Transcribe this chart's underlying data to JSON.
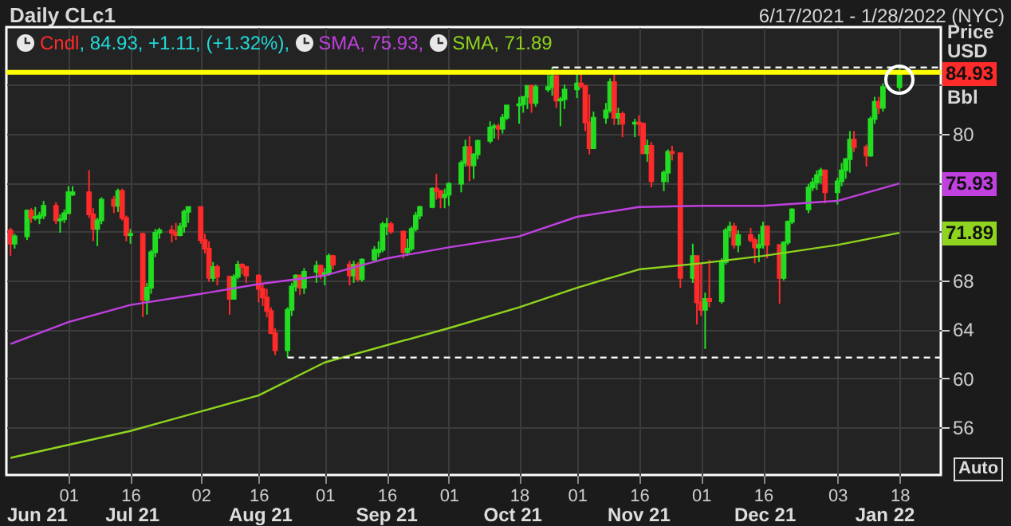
{
  "chart_data": {
    "type": "candlestick",
    "title": "Daily CLc1",
    "subtitle": "6/17/2021 - 1/28/2022 (NYC)",
    "ylabel": "Price USD Bbl",
    "series": [
      {
        "name": "Cndl",
        "x": [
          "2021-06-17",
          "2021-06-18",
          "2021-06-21",
          "2021-06-22",
          "2021-06-23",
          "2021-06-24",
          "2021-06-25",
          "2021-06-28",
          "2021-06-29",
          "2021-06-30",
          "2021-07-01",
          "2021-07-02",
          "2021-07-06",
          "2021-07-07",
          "2021-07-08",
          "2021-07-09",
          "2021-07-12",
          "2021-07-13",
          "2021-07-14",
          "2021-07-15",
          "2021-07-16",
          "2021-07-19",
          "2021-07-20",
          "2021-07-21",
          "2021-07-22",
          "2021-07-23",
          "2021-07-26",
          "2021-07-27",
          "2021-07-28",
          "2021-07-29",
          "2021-07-30",
          "2021-08-02",
          "2021-08-03",
          "2021-08-04",
          "2021-08-05",
          "2021-08-06",
          "2021-08-09",
          "2021-08-10",
          "2021-08-11",
          "2021-08-12",
          "2021-08-13",
          "2021-08-16",
          "2021-08-17",
          "2021-08-18",
          "2021-08-19",
          "2021-08-20",
          "2021-08-23",
          "2021-08-24",
          "2021-08-25",
          "2021-08-26",
          "2021-08-27",
          "2021-08-30",
          "2021-08-31",
          "2021-09-01",
          "2021-09-02",
          "2021-09-03",
          "2021-09-07",
          "2021-09-08",
          "2021-09-09",
          "2021-09-10",
          "2021-09-13",
          "2021-09-14",
          "2021-09-15",
          "2021-09-16",
          "2021-09-17",
          "2021-09-20",
          "2021-09-21",
          "2021-09-22",
          "2021-09-23",
          "2021-09-24",
          "2021-09-27",
          "2021-09-28",
          "2021-09-29",
          "2021-09-30",
          "2021-10-01",
          "2021-10-04",
          "2021-10-05",
          "2021-10-06",
          "2021-10-07",
          "2021-10-08",
          "2021-10-11",
          "2021-10-12",
          "2021-10-13",
          "2021-10-14",
          "2021-10-15",
          "2021-10-18",
          "2021-10-19",
          "2021-10-20",
          "2021-10-21",
          "2021-10-22",
          "2021-10-25",
          "2021-10-26",
          "2021-10-27",
          "2021-10-28",
          "2021-10-29",
          "2021-11-01",
          "2021-11-02",
          "2021-11-03",
          "2021-11-04",
          "2021-11-05",
          "2021-11-08",
          "2021-11-09",
          "2021-11-10",
          "2021-11-11",
          "2021-11-12",
          "2021-11-15",
          "2021-11-16",
          "2021-11-17",
          "2021-11-18",
          "2021-11-19",
          "2021-11-22",
          "2021-11-23",
          "2021-11-24",
          "2021-11-26",
          "2021-11-29",
          "2021-11-30",
          "2021-12-01",
          "2021-12-02",
          "2021-12-03",
          "2021-12-06",
          "2021-12-07",
          "2021-12-08",
          "2021-12-09",
          "2021-12-10",
          "2021-12-13",
          "2021-12-14",
          "2021-12-15",
          "2021-12-16",
          "2021-12-17",
          "2021-12-20",
          "2021-12-21",
          "2021-12-22",
          "2021-12-23",
          "2021-12-27",
          "2021-12-28",
          "2021-12-29",
          "2021-12-30",
          "2021-12-31",
          "2022-01-03",
          "2022-01-04",
          "2022-01-05",
          "2022-01-06",
          "2022-01-07",
          "2022-01-10",
          "2022-01-11",
          "2022-01-12",
          "2022-01-13",
          "2022-01-14",
          "2022-01-18"
        ],
        "ohlc": [
          [
            72.1,
            72.3,
            70.0,
            71.0
          ],
          [
            71.0,
            71.8,
            70.6,
            71.6
          ],
          [
            71.6,
            73.8,
            71.3,
            73.7
          ],
          [
            73.7,
            73.9,
            72.7,
            73.1
          ],
          [
            73.1,
            74.0,
            72.9,
            73.2
          ],
          [
            73.1,
            73.6,
            72.6,
            73.3
          ],
          [
            73.3,
            74.5,
            73.0,
            74.1
          ],
          [
            74.1,
            74.4,
            72.6,
            72.9
          ],
          [
            72.9,
            73.4,
            71.9,
            73.0
          ],
          [
            73.0,
            73.8,
            72.7,
            73.5
          ],
          [
            73.5,
            75.7,
            73.4,
            75.2
          ],
          [
            75.0,
            75.7,
            74.9,
            75.2
          ],
          [
            75.2,
            77.0,
            73.1,
            73.4
          ],
          [
            73.4,
            73.9,
            71.2,
            72.2
          ],
          [
            72.2,
            73.1,
            70.8,
            72.9
          ],
          [
            72.9,
            74.8,
            72.6,
            74.6
          ],
          [
            74.6,
            74.9,
            73.5,
            74.1
          ],
          [
            74.1,
            75.5,
            73.6,
            75.3
          ],
          [
            75.3,
            75.5,
            72.9,
            73.1
          ],
          [
            73.1,
            73.3,
            71.2,
            71.7
          ],
          [
            71.7,
            72.2,
            71.0,
            71.8
          ],
          [
            71.8,
            71.9,
            65.0,
            66.4
          ],
          [
            66.4,
            67.8,
            65.2,
            67.4
          ],
          [
            67.4,
            70.5,
            66.9,
            70.3
          ],
          [
            70.3,
            72.2,
            69.9,
            71.9
          ],
          [
            71.9,
            72.3,
            71.4,
            72.1
          ],
          [
            72.1,
            72.5,
            71.1,
            71.9
          ],
          [
            71.9,
            72.7,
            71.3,
            71.7
          ],
          [
            71.7,
            72.7,
            71.6,
            72.4
          ],
          [
            72.4,
            73.8,
            71.9,
            73.6
          ],
          [
            73.6,
            74.0,
            72.7,
            74.0
          ],
          [
            74.0,
            74.0,
            71.0,
            71.3
          ],
          [
            71.3,
            71.8,
            70.2,
            70.6
          ],
          [
            70.6,
            71.2,
            67.9,
            68.2
          ],
          [
            68.2,
            69.5,
            67.9,
            69.1
          ],
          [
            69.1,
            69.3,
            67.6,
            68.3
          ],
          [
            68.3,
            68.4,
            65.2,
            66.5
          ],
          [
            66.5,
            68.5,
            66.5,
            68.3
          ],
          [
            68.3,
            69.6,
            68.1,
            69.3
          ],
          [
            69.3,
            69.4,
            68.5,
            69.1
          ],
          [
            69.1,
            69.2,
            67.8,
            68.4
          ],
          [
            68.4,
            68.5,
            66.2,
            67.3
          ],
          [
            67.3,
            67.8,
            65.9,
            66.6
          ],
          [
            66.6,
            67.3,
            65.0,
            65.5
          ],
          [
            65.5,
            65.8,
            63.6,
            63.7
          ],
          [
            63.7,
            64.1,
            61.9,
            62.3
          ],
          [
            62.3,
            65.8,
            61.7,
            65.6
          ],
          [
            65.6,
            67.8,
            65.1,
            67.5
          ],
          [
            67.5,
            68.5,
            67.1,
            68.4
          ],
          [
            68.4,
            68.5,
            66.8,
            67.4
          ],
          [
            67.4,
            69.0,
            66.9,
            68.7
          ],
          [
            68.7,
            69.6,
            67.8,
            69.2
          ],
          [
            69.2,
            69.3,
            68.1,
            68.5
          ],
          [
            68.5,
            69.0,
            67.6,
            68.6
          ],
          [
            68.6,
            70.2,
            68.4,
            70.0
          ],
          [
            70.0,
            70.1,
            68.9,
            69.3
          ],
          [
            69.3,
            69.6,
            67.6,
            68.4
          ],
          [
            68.4,
            69.6,
            67.8,
            69.3
          ],
          [
            69.3,
            69.5,
            67.9,
            68.1
          ],
          [
            68.1,
            69.8,
            67.9,
            69.7
          ],
          [
            69.7,
            70.8,
            69.5,
            70.5
          ],
          [
            70.3,
            71.2,
            69.9,
            70.5
          ],
          [
            70.5,
            72.8,
            70.3,
            72.6
          ],
          [
            72.4,
            73.1,
            71.7,
            72.6
          ],
          [
            72.6,
            72.8,
            71.8,
            72.0
          ],
          [
            72.0,
            72.0,
            69.8,
            70.3
          ],
          [
            70.3,
            71.4,
            70.0,
            70.6
          ],
          [
            70.6,
            72.4,
            70.4,
            72.2
          ],
          [
            72.2,
            73.6,
            72.0,
            73.3
          ],
          [
            73.3,
            74.1,
            73.0,
            74.0
          ],
          [
            74.0,
            75.6,
            73.9,
            75.5
          ],
          [
            75.5,
            76.7,
            74.6,
            75.3
          ],
          [
            75.3,
            75.4,
            73.9,
            74.8
          ],
          [
            74.8,
            75.5,
            73.9,
            75.0
          ],
          [
            75.0,
            76.0,
            74.1,
            75.9
          ],
          [
            75.9,
            77.8,
            75.2,
            77.6
          ],
          [
            77.6,
            79.5,
            77.3,
            78.9
          ],
          [
            78.9,
            79.8,
            76.1,
            77.4
          ],
          [
            77.4,
            78.4,
            76.3,
            78.3
          ],
          [
            78.3,
            79.5,
            77.9,
            79.4
          ],
          [
            79.4,
            81.0,
            79.2,
            80.5
          ],
          [
            80.5,
            80.8,
            79.6,
            80.6
          ],
          [
            80.6,
            80.8,
            79.5,
            80.4
          ],
          [
            80.4,
            81.6,
            80.0,
            81.3
          ],
          [
            81.3,
            82.3,
            81.1,
            82.3
          ],
          [
            82.3,
            83.0,
            80.8,
            82.4
          ],
          [
            82.4,
            83.0,
            81.7,
            83.0
          ],
          [
            83.0,
            83.9,
            82.0,
            83.9
          ],
          [
            83.9,
            84.0,
            81.7,
            82.5
          ],
          [
            82.5,
            84.0,
            82.2,
            83.8
          ],
          [
            83.6,
            85.0,
            83.4,
            83.8
          ],
          [
            83.8,
            85.4,
            83.1,
            84.7
          ],
          [
            84.7,
            84.8,
            82.1,
            82.7
          ],
          [
            82.7,
            83.0,
            80.6,
            82.8
          ],
          [
            82.8,
            84.0,
            82.0,
            83.6
          ],
          [
            83.6,
            84.9,
            82.9,
            84.1
          ],
          [
            84.1,
            85.0,
            83.7,
            83.9
          ],
          [
            83.9,
            83.9,
            80.2,
            80.9
          ],
          [
            80.9,
            83.2,
            78.3,
            78.8
          ],
          [
            78.8,
            81.8,
            78.8,
            81.3
          ],
          [
            81.3,
            82.5,
            80.8,
            81.9
          ],
          [
            81.9,
            84.5,
            81.7,
            84.2
          ],
          [
            84.2,
            84.9,
            80.7,
            81.3
          ],
          [
            81.3,
            82.1,
            80.7,
            81.6
          ],
          [
            81.6,
            81.8,
            79.7,
            80.8
          ],
          [
            80.8,
            81.2,
            79.7,
            80.9
          ],
          [
            80.9,
            81.5,
            79.8,
            80.8
          ],
          [
            80.8,
            80.9,
            78.3,
            78.4
          ],
          [
            78.4,
            79.5,
            77.7,
            79.0
          ],
          [
            79.0,
            79.3,
            75.6,
            76.1
          ],
          [
            76.1,
            77.0,
            75.3,
            76.8
          ],
          [
            76.8,
            78.7,
            76.0,
            78.5
          ],
          [
            78.5,
            79.0,
            77.8,
            78.4
          ],
          [
            78.4,
            78.4,
            67.4,
            68.2
          ],
          [
            68.2,
            71.0,
            67.8,
            70.0
          ],
          [
            70.0,
            70.0,
            64.4,
            66.2
          ],
          [
            66.2,
            69.4,
            65.1,
            65.6
          ],
          [
            65.6,
            67.0,
            62.4,
            66.5
          ],
          [
            66.5,
            69.7,
            65.8,
            66.3
          ],
          [
            66.3,
            69.8,
            66.1,
            69.5
          ],
          [
            69.5,
            72.3,
            69.3,
            72.1
          ],
          [
            72.1,
            72.8,
            71.5,
            72.4
          ],
          [
            72.4,
            72.7,
            70.6,
            70.9
          ],
          [
            70.9,
            72.1,
            70.3,
            71.7
          ],
          [
            71.7,
            72.3,
            71.1,
            71.3
          ],
          [
            71.3,
            71.5,
            69.4,
            70.7
          ],
          [
            70.7,
            71.8,
            69.5,
            70.9
          ],
          [
            70.9,
            72.8,
            70.6,
            72.4
          ],
          [
            72.4,
            72.5,
            69.8,
            70.9
          ],
          [
            70.9,
            70.9,
            66.1,
            68.2
          ],
          [
            68.2,
            71.2,
            68.0,
            71.1
          ],
          [
            71.1,
            72.9,
            70.9,
            72.8
          ],
          [
            72.8,
            73.9,
            72.6,
            73.8
          ],
          [
            73.8,
            75.9,
            73.5,
            75.6
          ],
          [
            75.6,
            76.4,
            75.3,
            76.0
          ],
          [
            76.0,
            77.0,
            75.4,
            76.6
          ],
          [
            76.6,
            77.2,
            75.9,
            77.0
          ],
          [
            77.0,
            77.0,
            74.3,
            75.2
          ],
          [
            75.2,
            76.4,
            74.2,
            76.1
          ],
          [
            76.1,
            77.6,
            75.7,
            77.0
          ],
          [
            77.0,
            78.0,
            76.3,
            77.9
          ],
          [
            77.9,
            80.2,
            76.8,
            79.5
          ],
          [
            79.5,
            80.2,
            78.5,
            78.9
          ],
          [
            78.9,
            79.1,
            77.3,
            78.2
          ],
          [
            78.2,
            81.4,
            78.1,
            81.2
          ],
          [
            81.2,
            83.0,
            80.8,
            82.6
          ],
          [
            82.6,
            83.0,
            81.6,
            82.1
          ],
          [
            82.1,
            84.1,
            81.8,
            83.8
          ],
          [
            83.8,
            85.3,
            83.5,
            84.9
          ]
        ]
      },
      {
        "type": "line",
        "name": "SMA",
        "color": "#c040e0",
        "x": [
          "2021-06-17",
          "2021-07-01",
          "2021-07-16",
          "2021-08-02",
          "2021-08-16",
          "2021-09-01",
          "2021-09-16",
          "2021-10-01",
          "2021-10-18",
          "2021-11-01",
          "2021-11-16",
          "2021-12-01",
          "2021-12-16",
          "2022-01-03",
          "2022-01-18"
        ],
        "values": [
          62.8,
          64.6,
          66.0,
          66.9,
          67.7,
          68.4,
          69.8,
          70.7,
          71.6,
          73.2,
          74.0,
          74.1,
          74.1,
          74.5,
          75.93
        ]
      },
      {
        "type": "line",
        "name": "SMA",
        "color": "#8fd41e",
        "x": [
          "2021-06-17",
          "2021-07-16",
          "2021-08-16",
          "2021-09-01",
          "2021-10-01",
          "2021-10-18",
          "2021-11-01",
          "2021-11-16",
          "2021-12-01",
          "2021-12-16",
          "2022-01-03",
          "2022-01-18"
        ],
        "values": [
          53.5,
          55.7,
          58.6,
          61.3,
          64.1,
          65.8,
          67.4,
          68.9,
          69.4,
          70.0,
          70.9,
          71.89
        ]
      },
      {
        "type": "line",
        "color": "#ffffff",
        "line_style": "dashed",
        "x": [
          "2021-10-26",
          "2022-01-28"
        ],
        "values": [
          85.4,
          85.4
        ]
      },
      {
        "type": "line",
        "color": "#ffffff",
        "line_style": "dashed",
        "x": [
          "2021-08-23",
          "2022-01-28"
        ],
        "values": [
          61.7,
          61.7
        ]
      }
    ],
    "ref_lines": [
      {
        "axis": "y",
        "value": 85,
        "color": "#ffff00"
      }
    ],
    "xlim": [
      "2021-06-16",
      "2022-01-28"
    ],
    "xticks": [
      {
        "value": "2021-07-01",
        "label": "01"
      },
      {
        "value": "2021-07-16",
        "label": "16"
      },
      {
        "value": "2021-08-02",
        "label": "02"
      },
      {
        "value": "2021-08-16",
        "label": "16"
      },
      {
        "value": "2021-09-01",
        "label": "01"
      },
      {
        "value": "2021-09-16",
        "label": "16"
      },
      {
        "value": "2021-10-01",
        "label": "01"
      },
      {
        "value": "2021-10-18",
        "label": "18"
      },
      {
        "value": "2021-11-01",
        "label": "01"
      },
      {
        "value": "2021-11-16",
        "label": "16"
      },
      {
        "value": "2021-12-01",
        "label": "01"
      },
      {
        "value": "2021-12-16",
        "label": "16"
      },
      {
        "value": "2022-01-03",
        "label": "03"
      },
      {
        "value": "2022-01-18",
        "label": "18"
      }
    ],
    "ylim": [
      52.1,
      88.7
    ],
    "yticks": [
      56,
      60,
      64,
      68,
      {
        "value": 72,
        "label": null
      },
      {
        "value": 76,
        "label": null
      },
      80,
      {
        "value": 84,
        "label": null
      }
    ],
    "grid": true,
    "legend": "top left",
    "annotations": [
      ", 84.93, +1.11, (+1.32%),",
      ", 75.93,",
      ", 71.89",
      "84.93",
      "75.93",
      "71.89",
      "Jun 21",
      "Jul 21",
      "Aug 21",
      "Sep 21",
      "Oct 21",
      "Nov 21",
      "Dec 21",
      "Jan 22",
      "Auto"
    ]
  }
}
